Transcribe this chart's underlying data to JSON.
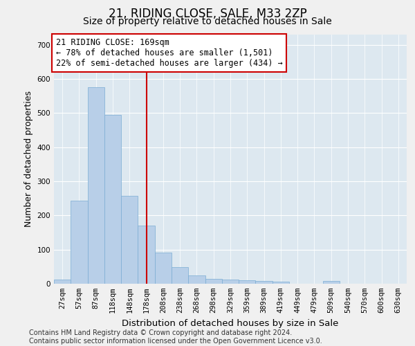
{
  "title": "21, RIDING CLOSE, SALE, M33 2ZP",
  "subtitle": "Size of property relative to detached houses in Sale",
  "xlabel": "Distribution of detached houses by size in Sale",
  "ylabel": "Number of detached properties",
  "categories": [
    "27sqm",
    "57sqm",
    "87sqm",
    "118sqm",
    "148sqm",
    "178sqm",
    "208sqm",
    "238sqm",
    "268sqm",
    "298sqm",
    "329sqm",
    "359sqm",
    "389sqm",
    "419sqm",
    "449sqm",
    "479sqm",
    "509sqm",
    "540sqm",
    "570sqm",
    "600sqm",
    "630sqm"
  ],
  "values": [
    13,
    243,
    575,
    495,
    258,
    170,
    92,
    48,
    25,
    14,
    12,
    11,
    8,
    7,
    0,
    0,
    8,
    0,
    0,
    0,
    0
  ],
  "bar_color": "#b8cfe8",
  "bar_edge_color": "#7aacd4",
  "bar_width": 1.0,
  "vline_x": 5,
  "vline_color": "#cc0000",
  "annotation_line1": "21 RIDING CLOSE: 169sqm",
  "annotation_line2": "← 78% of detached houses are smaller (1,501)",
  "annotation_line3": "22% of semi-detached houses are larger (434) →",
  "annotation_box_color": "#cc0000",
  "ylim": [
    0,
    730
  ],
  "yticks": [
    0,
    100,
    200,
    300,
    400,
    500,
    600,
    700
  ],
  "background_color": "#dde8f0",
  "grid_color": "#ffffff",
  "footnote": "Contains HM Land Registry data © Crown copyright and database right 2024.\nContains public sector information licensed under the Open Government Licence v3.0.",
  "title_fontsize": 12,
  "subtitle_fontsize": 10,
  "xlabel_fontsize": 9.5,
  "ylabel_fontsize": 9,
  "tick_fontsize": 7.5,
  "annotation_fontsize": 8.5,
  "footnote_fontsize": 7
}
